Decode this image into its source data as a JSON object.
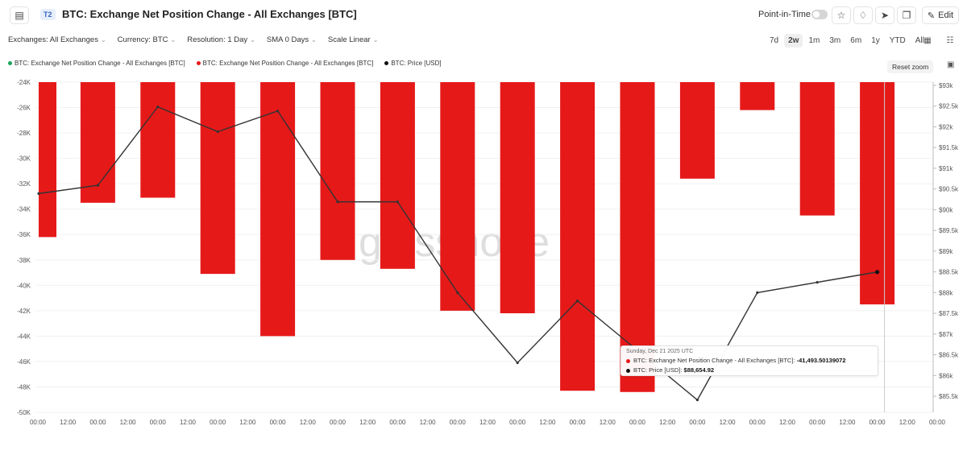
{
  "header": {
    "badge": "T2",
    "title": "BTC: Exchange Net Position Change - All Exchanges [BTC]",
    "point_in_time_label": "Point-in-Time",
    "edit_label": "Edit"
  },
  "filters": [
    {
      "label": "Exchanges: All Exchanges"
    },
    {
      "label": "Currency: BTC"
    },
    {
      "label": "Resolution: 1 Day"
    },
    {
      "label": "SMA 0 Days"
    },
    {
      "label": "Scale Linear"
    }
  ],
  "ranges": [
    "7d",
    "2w",
    "1m",
    "3m",
    "6m",
    "1y",
    "YTD",
    "All"
  ],
  "active_range": "2w",
  "legend": [
    {
      "label": "BTC: Exchange Net Position Change - All Exchanges [BTC]",
      "color": "#1aa55a"
    },
    {
      "label": "BTC: Exchange Net Position Change - All Exchanges [BTC]",
      "color": "#e61919"
    },
    {
      "label": "BTC: Price [USD]",
      "color": "#111111"
    }
  ],
  "reset_zoom_label": "Reset zoom",
  "watermark": "glassnode",
  "tooltip": {
    "date": "Sunday, Dec 21 2025 UTC",
    "series1_label": "BTC: Exchange Net Position Change - All Exchanges [BTC]:",
    "series1_value": "-41,493.50139072",
    "series2_label": "BTC: Price [USD]:",
    "series2_value": "$88,654.92",
    "series1_color": "#e61919",
    "series2_color": "#111111"
  },
  "chart_data": {
    "type": "bar",
    "bar_color": "#e61919",
    "line_color": "#333333",
    "y_left": {
      "min": -50000,
      "max": -24000,
      "ticks": [
        "-24K",
        "-26K",
        "-28K",
        "-30K",
        "-32K",
        "-34K",
        "-36K",
        "-38K",
        "-40K",
        "-42K",
        "-44K",
        "-46K",
        "-48K",
        "-50K"
      ]
    },
    "y_right": {
      "min": 85250,
      "max": 93250,
      "ticks": [
        "$93k",
        "$92.5k",
        "$92k",
        "$91.5k",
        "$91k",
        "$90.5k",
        "$90k",
        "$89.5k",
        "$89k",
        "$88.5k",
        "$88k",
        "$87.5k",
        "$87k",
        "$86.5k",
        "$86k",
        "$85.5k"
      ]
    },
    "x_ticks": [
      "00:00",
      "12:00",
      "00:00",
      "12:00",
      "00:00",
      "12:00",
      "00:00",
      "12:00",
      "00:00",
      "12:00",
      "00:00",
      "12:00",
      "00:00",
      "12:00",
      "00:00",
      "12:00",
      "00:00",
      "12:00",
      "00:00",
      "12:00",
      "00:00",
      "12:00",
      "00:00",
      "12:00",
      "00:00",
      "12:00",
      "00:00",
      "12:00",
      "00:00",
      "12:00",
      "00:00"
    ],
    "series": [
      {
        "name": "BTC: Exchange Net Position Change - All Exchanges [BTC]",
        "kind": "bar",
        "values": [
          -36200,
          -33500,
          -33100,
          -39100,
          -44000,
          -38000,
          -38700,
          -42000,
          -42200,
          -48300,
          -48400,
          -31600,
          -26200,
          -34500,
          -41500
        ]
      },
      {
        "name": "BTC: Price [USD]",
        "kind": "line",
        "values": [
          90550,
          90750,
          92650,
          92050,
          92550,
          90350,
          90350,
          88150,
          86450,
          87950,
          86750,
          85550,
          88150,
          88400,
          88650
        ]
      }
    ]
  }
}
